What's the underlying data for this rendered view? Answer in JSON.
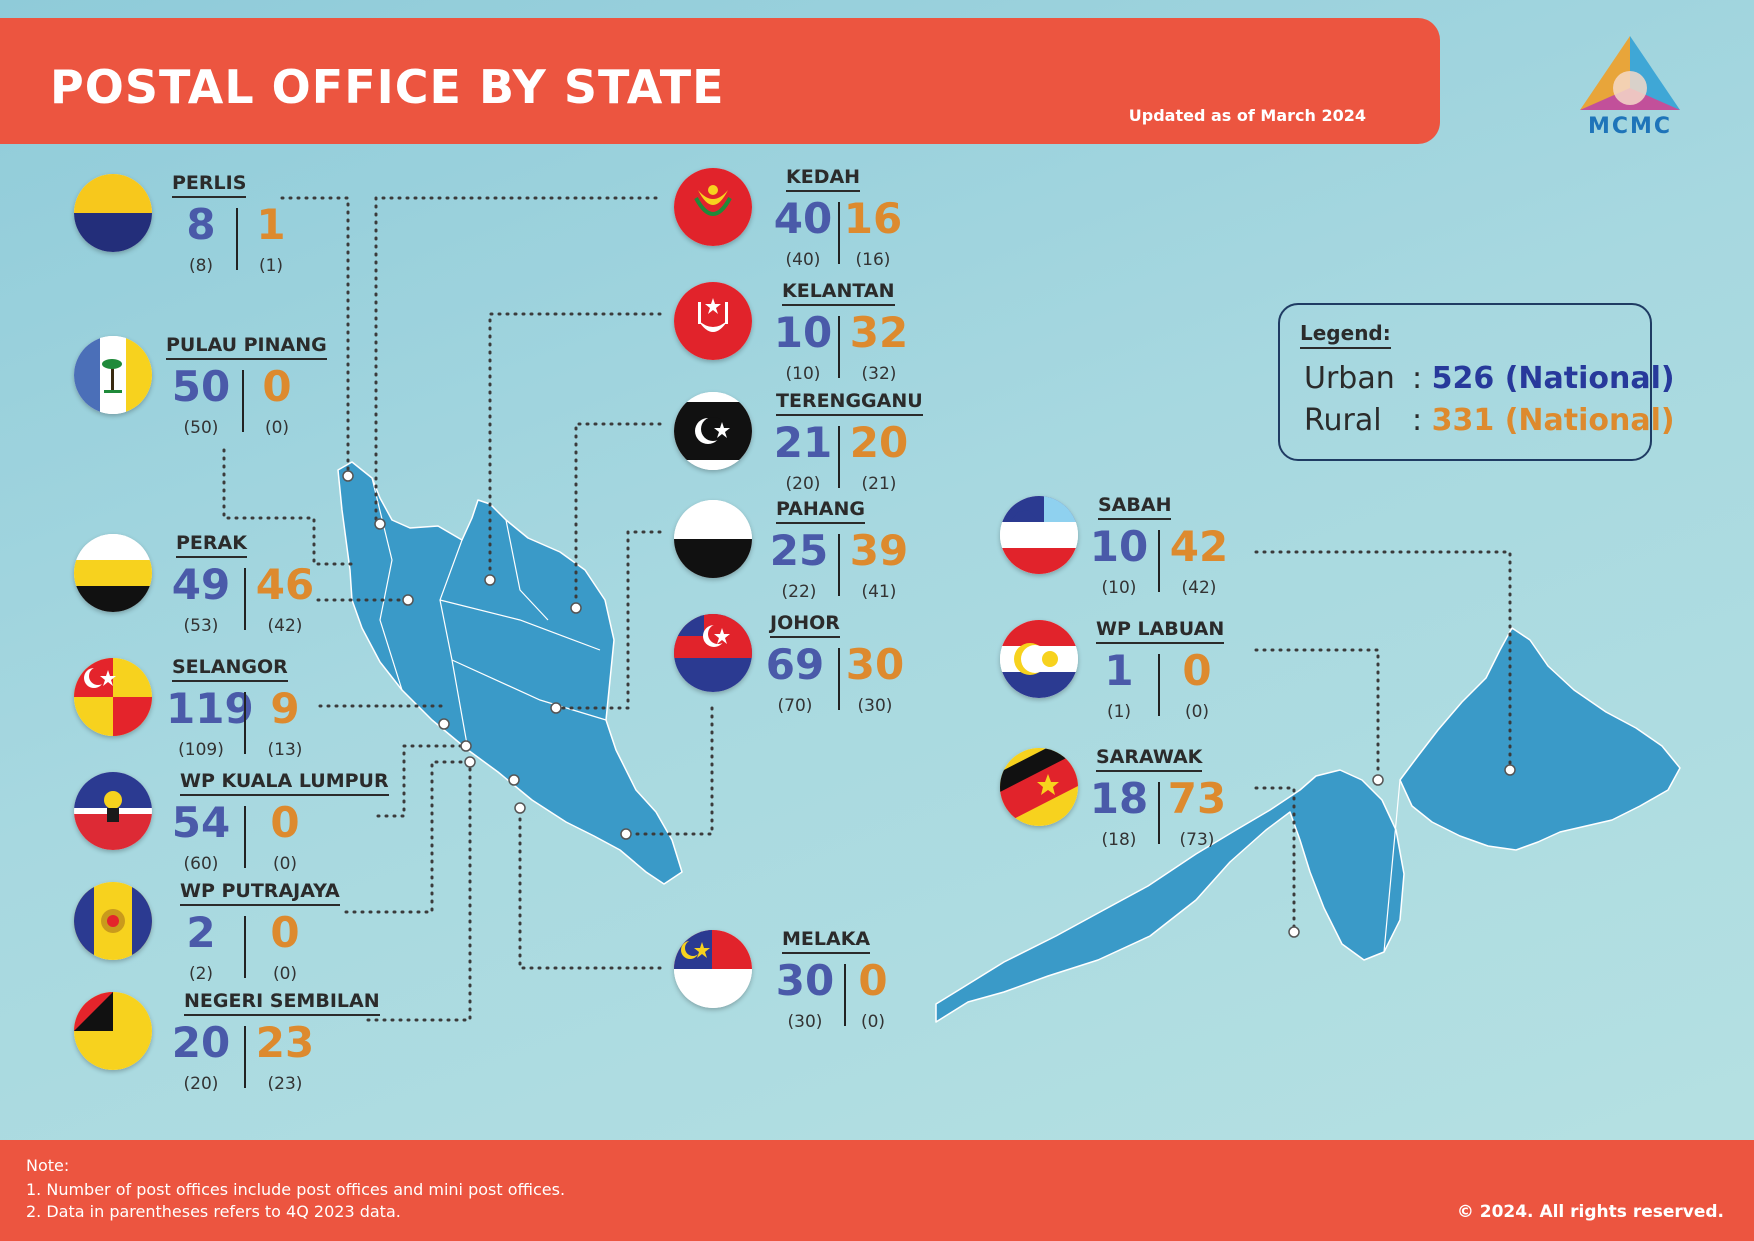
{
  "header": {
    "title": "POSTAL OFFICE BY STATE",
    "updated": "Updated as of March 2024",
    "logo_text": "MCMC"
  },
  "colors": {
    "urban": "#4a5aa9",
    "rural": "#dd8a2e",
    "banner": "#ec5540",
    "map": "#3a9ac8"
  },
  "states": [
    {
      "name": "PERLIS",
      "urban": "8",
      "rural": "1",
      "urban_prev": "(8)",
      "rural_prev": "(1)",
      "flag_icon": "perlis-flag-icon"
    },
    {
      "name": "PULAU PINANG",
      "urban": "50",
      "rural": "0",
      "urban_prev": "(50)",
      "rural_prev": "(0)",
      "flag_icon": "pulau-pinang-flag-icon"
    },
    {
      "name": "PERAK",
      "urban": "49",
      "rural": "46",
      "urban_prev": "(53)",
      "rural_prev": "(42)",
      "flag_icon": "perak-flag-icon"
    },
    {
      "name": "SELANGOR",
      "urban": "119",
      "rural": "9",
      "urban_prev": "(109)",
      "rural_prev": "(13)",
      "flag_icon": "selangor-flag-icon"
    },
    {
      "name": "WP KUALA LUMPUR",
      "urban": "54",
      "rural": "0",
      "urban_prev": "(60)",
      "rural_prev": "(0)",
      "flag_icon": "kuala-lumpur-flag-icon"
    },
    {
      "name": "WP PUTRAJAYA",
      "urban": "2",
      "rural": "0",
      "urban_prev": "(2)",
      "rural_prev": "(0)",
      "flag_icon": "putrajaya-flag-icon"
    },
    {
      "name": "NEGERI SEMBILAN",
      "urban": "20",
      "rural": "23",
      "urban_prev": "(20)",
      "rural_prev": "(23)",
      "flag_icon": "negeri-sembilan-flag-icon"
    },
    {
      "name": "KEDAH",
      "urban": "40",
      "rural": "16",
      "urban_prev": "(40)",
      "rural_prev": "(16)",
      "flag_icon": "kedah-flag-icon"
    },
    {
      "name": "KELANTAN",
      "urban": "10",
      "rural": "32",
      "urban_prev": "(10)",
      "rural_prev": "(32)",
      "flag_icon": "kelantan-flag-icon"
    },
    {
      "name": "TERENGGANU",
      "urban": "21",
      "rural": "20",
      "urban_prev": "(20)",
      "rural_prev": "(21)",
      "flag_icon": "terengganu-flag-icon"
    },
    {
      "name": "PAHANG",
      "urban": "25",
      "rural": "39",
      "urban_prev": "(22)",
      "rural_prev": "(41)",
      "flag_icon": "pahang-flag-icon"
    },
    {
      "name": "JOHOR",
      "urban": "69",
      "rural": "30",
      "urban_prev": "(70)",
      "rural_prev": "(30)",
      "flag_icon": "johor-flag-icon"
    },
    {
      "name": "MELAKA",
      "urban": "30",
      "rural": "0",
      "urban_prev": "(30)",
      "rural_prev": "(0)",
      "flag_icon": "melaka-flag-icon"
    },
    {
      "name": "SABAH",
      "urban": "10",
      "rural": "42",
      "urban_prev": "(10)",
      "rural_prev": "(42)",
      "flag_icon": "sabah-flag-icon"
    },
    {
      "name": "WP LABUAN",
      "urban": "1",
      "rural": "0",
      "urban_prev": "(1)",
      "rural_prev": "(0)",
      "flag_icon": "labuan-flag-icon"
    },
    {
      "name": "SARAWAK",
      "urban": "18",
      "rural": "73",
      "urban_prev": "(18)",
      "rural_prev": "(73)",
      "flag_icon": "sarawak-flag-icon"
    }
  ],
  "legend": {
    "title": "Legend:",
    "urban_label": "Urban",
    "urban_value": "526 (National)",
    "rural_label": "Rural",
    "rural_value": "331 (National)",
    "separator": ":"
  },
  "footer": {
    "note_title": "Note:",
    "notes": [
      "1.  Number of post offices include post offices and mini post offices.",
      "2.  Data in parentheses refers to 4Q 2023 data."
    ],
    "copyright": "© 2024. All rights reserved."
  }
}
